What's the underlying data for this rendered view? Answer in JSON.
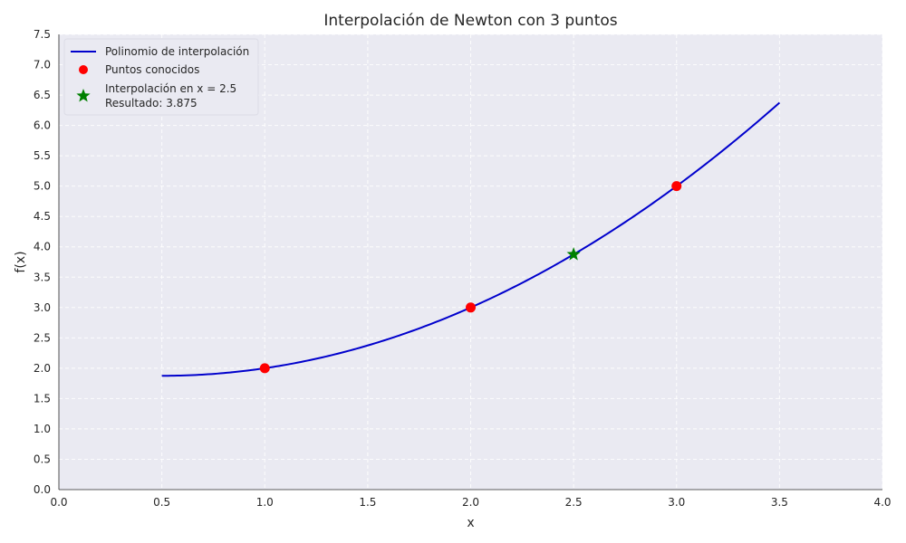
{
  "chart_data": {
    "type": "line",
    "title": "Interpolación de Newton con 3 puntos",
    "xlabel": "x",
    "ylabel": "f(x)",
    "xlim": [
      0.0,
      4.0
    ],
    "ylim": [
      0.0,
      7.5
    ],
    "x_ticks": [
      "0.0",
      "0.5",
      "1.0",
      "1.5",
      "2.0",
      "2.5",
      "3.0",
      "3.5",
      "4.0"
    ],
    "y_ticks": [
      "0.0",
      "0.5",
      "1.0",
      "1.5",
      "2.0",
      "2.5",
      "3.0",
      "3.5",
      "4.0",
      "4.5",
      "5.0",
      "5.5",
      "6.0",
      "6.5",
      "7.0",
      "7.5"
    ],
    "grid": true,
    "legend_position": "top-left",
    "series": [
      {
        "name": "Polinomio de interpolación",
        "kind": "line",
        "color": "#0000cc",
        "x": [
          0.5,
          0.75,
          1.0,
          1.25,
          1.5,
          1.75,
          2.0,
          2.25,
          2.5,
          2.75,
          3.0,
          3.25,
          3.5
        ],
        "y": [
          1.875,
          1.906,
          2.0,
          2.156,
          2.375,
          2.656,
          3.0,
          3.406,
          3.875,
          4.406,
          5.0,
          5.656,
          6.375
        ]
      },
      {
        "name": "Puntos conocidos",
        "kind": "scatter",
        "marker": "circle",
        "color": "#ff0000",
        "x": [
          1.0,
          2.0,
          3.0
        ],
        "y": [
          2.0,
          3.0,
          5.0
        ]
      },
      {
        "name": "Interpolación en x = 2.5",
        "name_line2": "Resultado: 3.875",
        "kind": "scatter",
        "marker": "star",
        "color": "#008000",
        "x": [
          2.5
        ],
        "y": [
          3.875
        ]
      }
    ],
    "background_color": "#eaeaf2"
  }
}
